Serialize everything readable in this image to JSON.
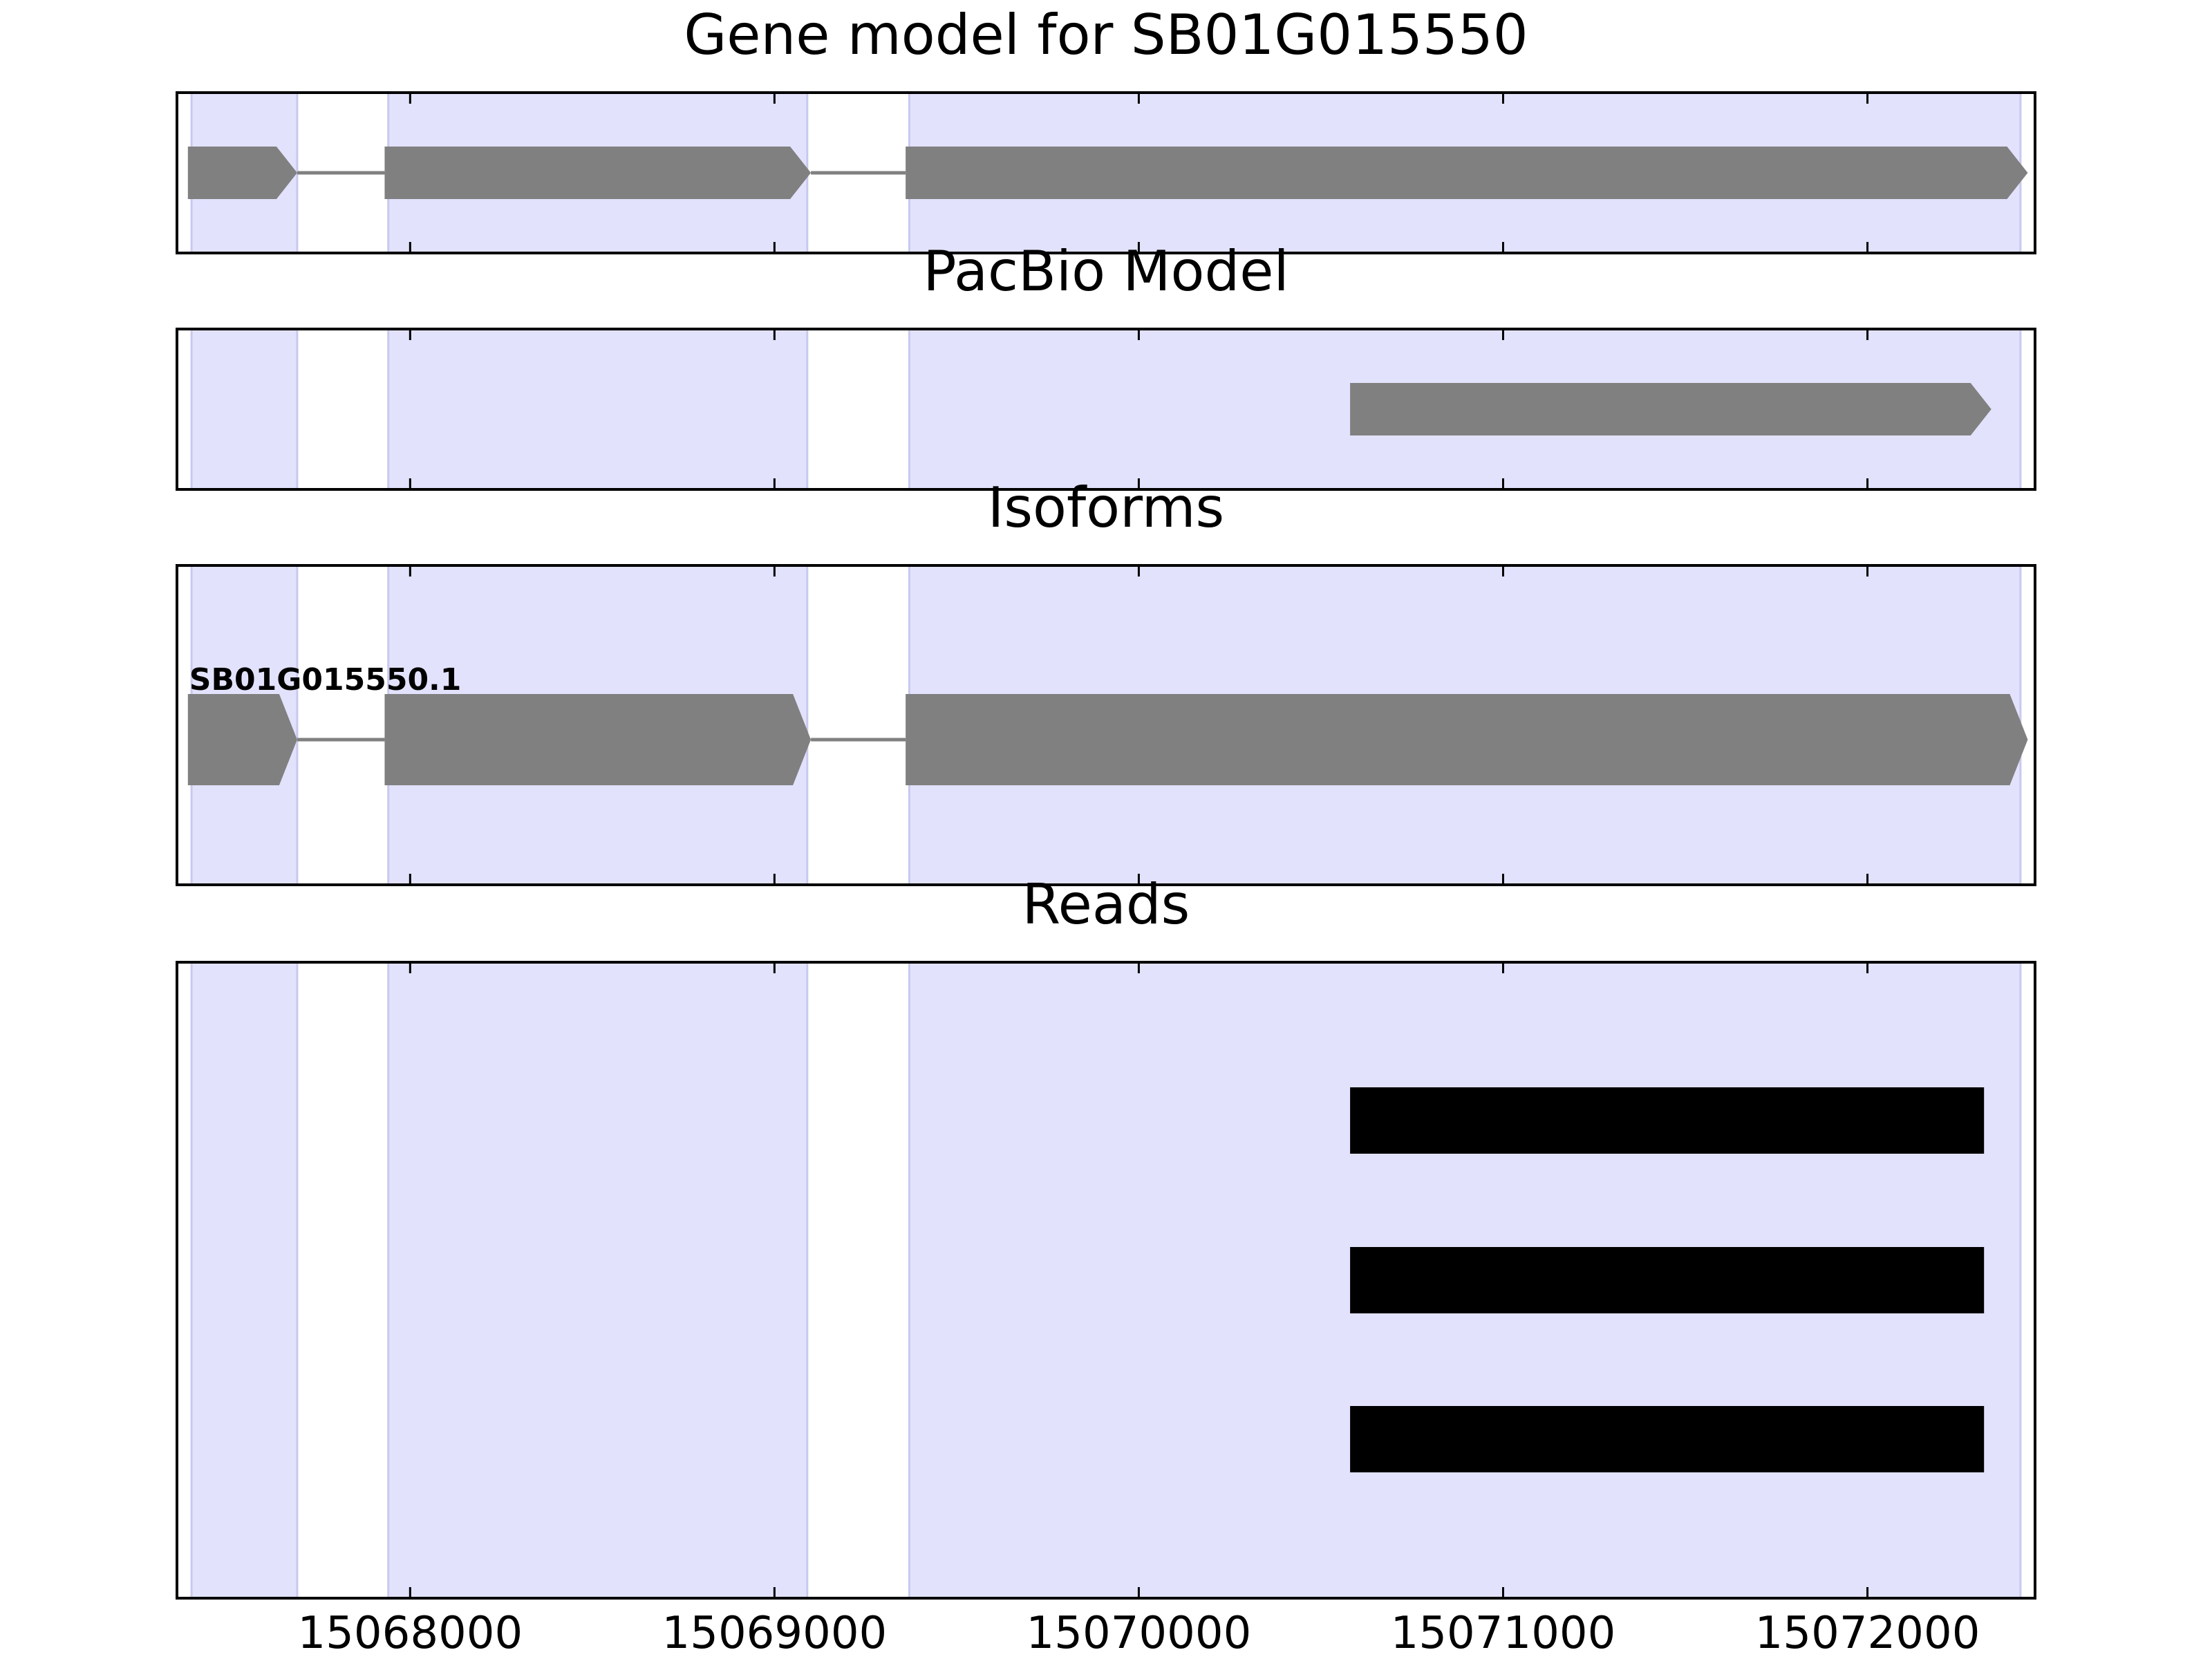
{
  "chart_data": [
    {
      "type": "gene-track",
      "title": "Gene model for SB01G015550",
      "xlim": [
        15067360,
        15072460
      ],
      "xticks": [
        15068000,
        15069000,
        15070000,
        15071000,
        15072000
      ],
      "xtick_labels": [],
      "shaded_regions": [
        [
          15067400,
          15067690
        ],
        [
          15067940,
          15069090
        ],
        [
          15069370,
          15072420
        ]
      ],
      "features": [
        {
          "exons": [
            [
              15067390,
              15067690
            ],
            [
              15067930,
              15069100
            ],
            [
              15069360,
              15072440
            ]
          ],
          "strand": "+"
        }
      ]
    },
    {
      "type": "gene-track",
      "title": "PacBio Model",
      "xlim": [
        15067360,
        15072460
      ],
      "xticks": [
        15068000,
        15069000,
        15070000,
        15071000,
        15072000
      ],
      "xtick_labels": [],
      "shaded_regions": [
        [
          15067400,
          15067690
        ],
        [
          15067940,
          15069090
        ],
        [
          15069370,
          15072420
        ]
      ],
      "features": [
        {
          "exons": [
            [
              15070580,
              15072340
            ]
          ],
          "strand": "+"
        }
      ]
    },
    {
      "type": "gene-track",
      "title": "Isoforms",
      "xlim": [
        15067360,
        15072460
      ],
      "xticks": [
        15068000,
        15069000,
        15070000,
        15071000,
        15072000
      ],
      "xtick_labels": [],
      "shaded_regions": [
        [
          15067400,
          15067690
        ],
        [
          15067940,
          15069090
        ],
        [
          15069370,
          15072420
        ]
      ],
      "features": [
        {
          "name": "SB01G015550.1",
          "exons": [
            [
              15067390,
              15067690
            ],
            [
              15067930,
              15069100
            ],
            [
              15069360,
              15072440
            ]
          ],
          "strand": "+"
        }
      ]
    },
    {
      "type": "read-track",
      "title": "Reads",
      "xlim": [
        15067360,
        15072460
      ],
      "xticks": [
        15068000,
        15069000,
        15070000,
        15071000,
        15072000
      ],
      "xtick_labels": [
        "15068000",
        "15069000",
        "15070000",
        "15071000",
        "15072000"
      ],
      "shaded_regions": [
        [
          15067400,
          15067690
        ],
        [
          15067940,
          15069090
        ],
        [
          15069370,
          15072420
        ]
      ],
      "reads": [
        {
          "start": 15070580,
          "end": 15072320
        },
        {
          "start": 15070580,
          "end": 15072320
        },
        {
          "start": 15070580,
          "end": 15072320
        }
      ]
    }
  ],
  "colors": {
    "shade": "#e2e2fd",
    "shade_edge": "#c9c9ee",
    "exon": "#808080",
    "intron": "#808080",
    "read": "#000000",
    "axis": "#000000"
  }
}
